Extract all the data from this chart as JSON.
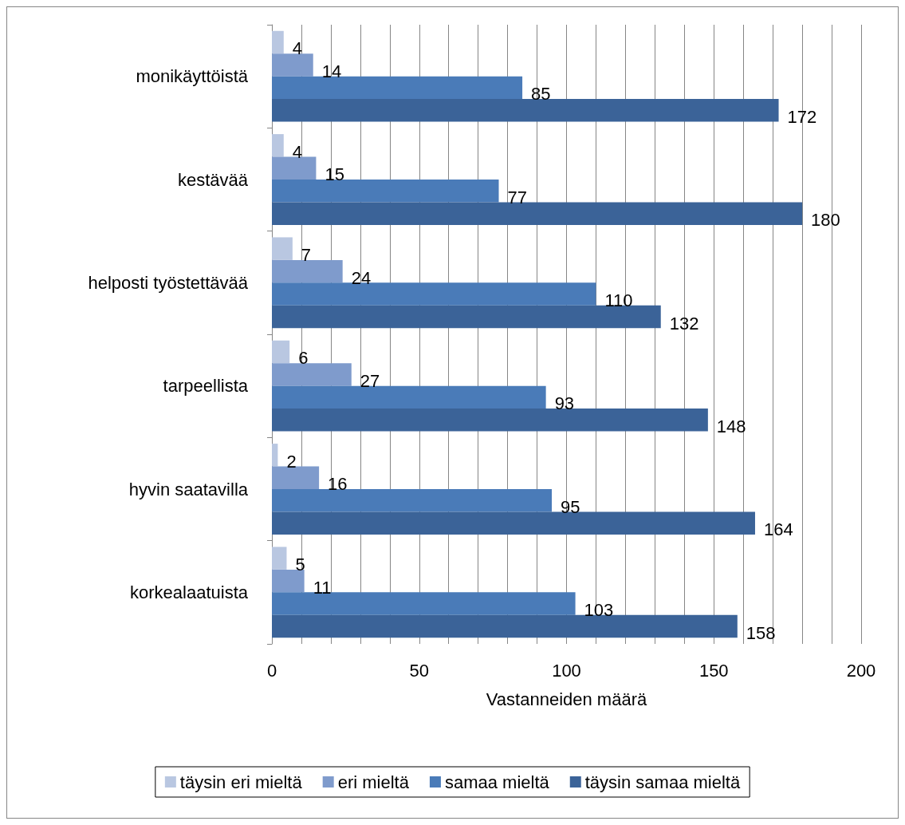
{
  "chart_data": {
    "type": "bar",
    "orientation": "horizontal",
    "xlabel": "Vastanneiden määrä",
    "categories": [
      "monikäyttöistä",
      "kestävää",
      "helposti työstettävää",
      "tarpeellista",
      "hyvin saatavilla",
      "korkealaatuista"
    ],
    "series": [
      {
        "name": "täysin eri mieltä",
        "color": "#b9c7e1",
        "values": [
          4,
          4,
          7,
          6,
          2,
          5
        ]
      },
      {
        "name": "eri mieltä",
        "color": "#7f9bcc",
        "values": [
          14,
          15,
          24,
          27,
          16,
          11
        ]
      },
      {
        "name": "samaa mieltä",
        "color": "#4a7bb8",
        "values": [
          85,
          77,
          110,
          93,
          95,
          103
        ]
      },
      {
        "name": "täysin samaa mieltä",
        "color": "#3b6398",
        "values": [
          172,
          180,
          132,
          148,
          164,
          158
        ]
      }
    ],
    "xlim": [
      0,
      200
    ],
    "xticks": [
      0,
      {
        "value": 10,
        "label": null
      },
      {
        "value": 20,
        "label": null
      },
      {
        "value": 30,
        "label": null
      },
      {
        "value": 40,
        "label": null
      },
      50,
      {
        "value": 60,
        "label": null
      },
      {
        "value": 70,
        "label": null
      },
      {
        "value": 80,
        "label": null
      },
      {
        "value": 90,
        "label": null
      },
      100,
      {
        "value": 110,
        "label": null
      },
      {
        "value": 120,
        "label": null
      },
      {
        "value": 130,
        "label": null
      },
      {
        "value": 140,
        "label": null
      },
      150,
      {
        "value": 160,
        "label": null
      },
      {
        "value": 170,
        "label": null
      },
      {
        "value": 180,
        "label": null
      },
      {
        "value": 190,
        "label": null
      },
      200
    ],
    "grid": "x",
    "legend": "bottom",
    "data_labels": true
  }
}
